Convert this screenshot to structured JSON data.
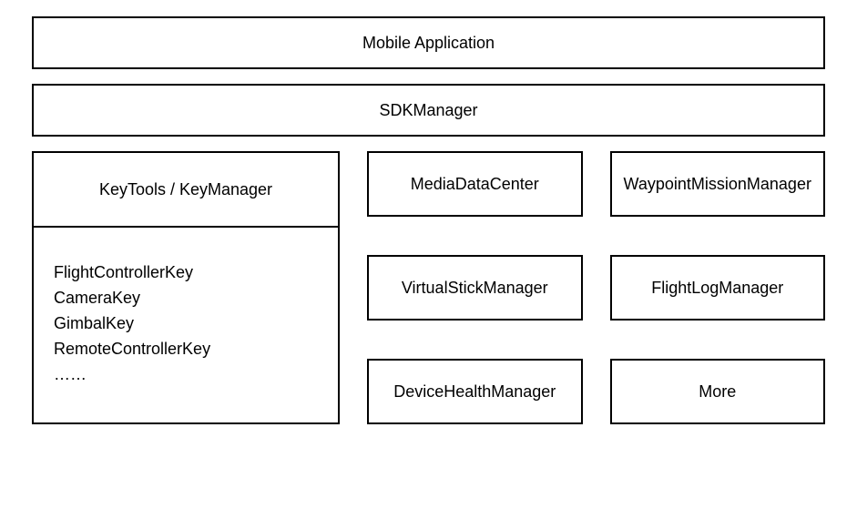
{
  "diagram": {
    "type": "block-diagram",
    "background_color": "#ffffff",
    "border_color": "#000000",
    "border_width": 2,
    "text_color": "#000000",
    "font_size": 18,
    "font_family": "Arial",
    "top_blocks": [
      {
        "label": "Mobile Application"
      },
      {
        "label": "SDKManager"
      }
    ],
    "left_panel": {
      "header": "KeyTools / KeyManager",
      "keys": [
        "FlightControllerKey",
        "CameraKey",
        "GimbalKey",
        "RemoteControllerKey",
        "……"
      ]
    },
    "right_grid": {
      "columns": 2,
      "rows": 3,
      "cells": [
        "MediaDataCenter",
        "WaypointMissionManager",
        "VirtualStickManager",
        "FlightLogManager",
        "DeviceHealthManager",
        "More"
      ]
    }
  }
}
